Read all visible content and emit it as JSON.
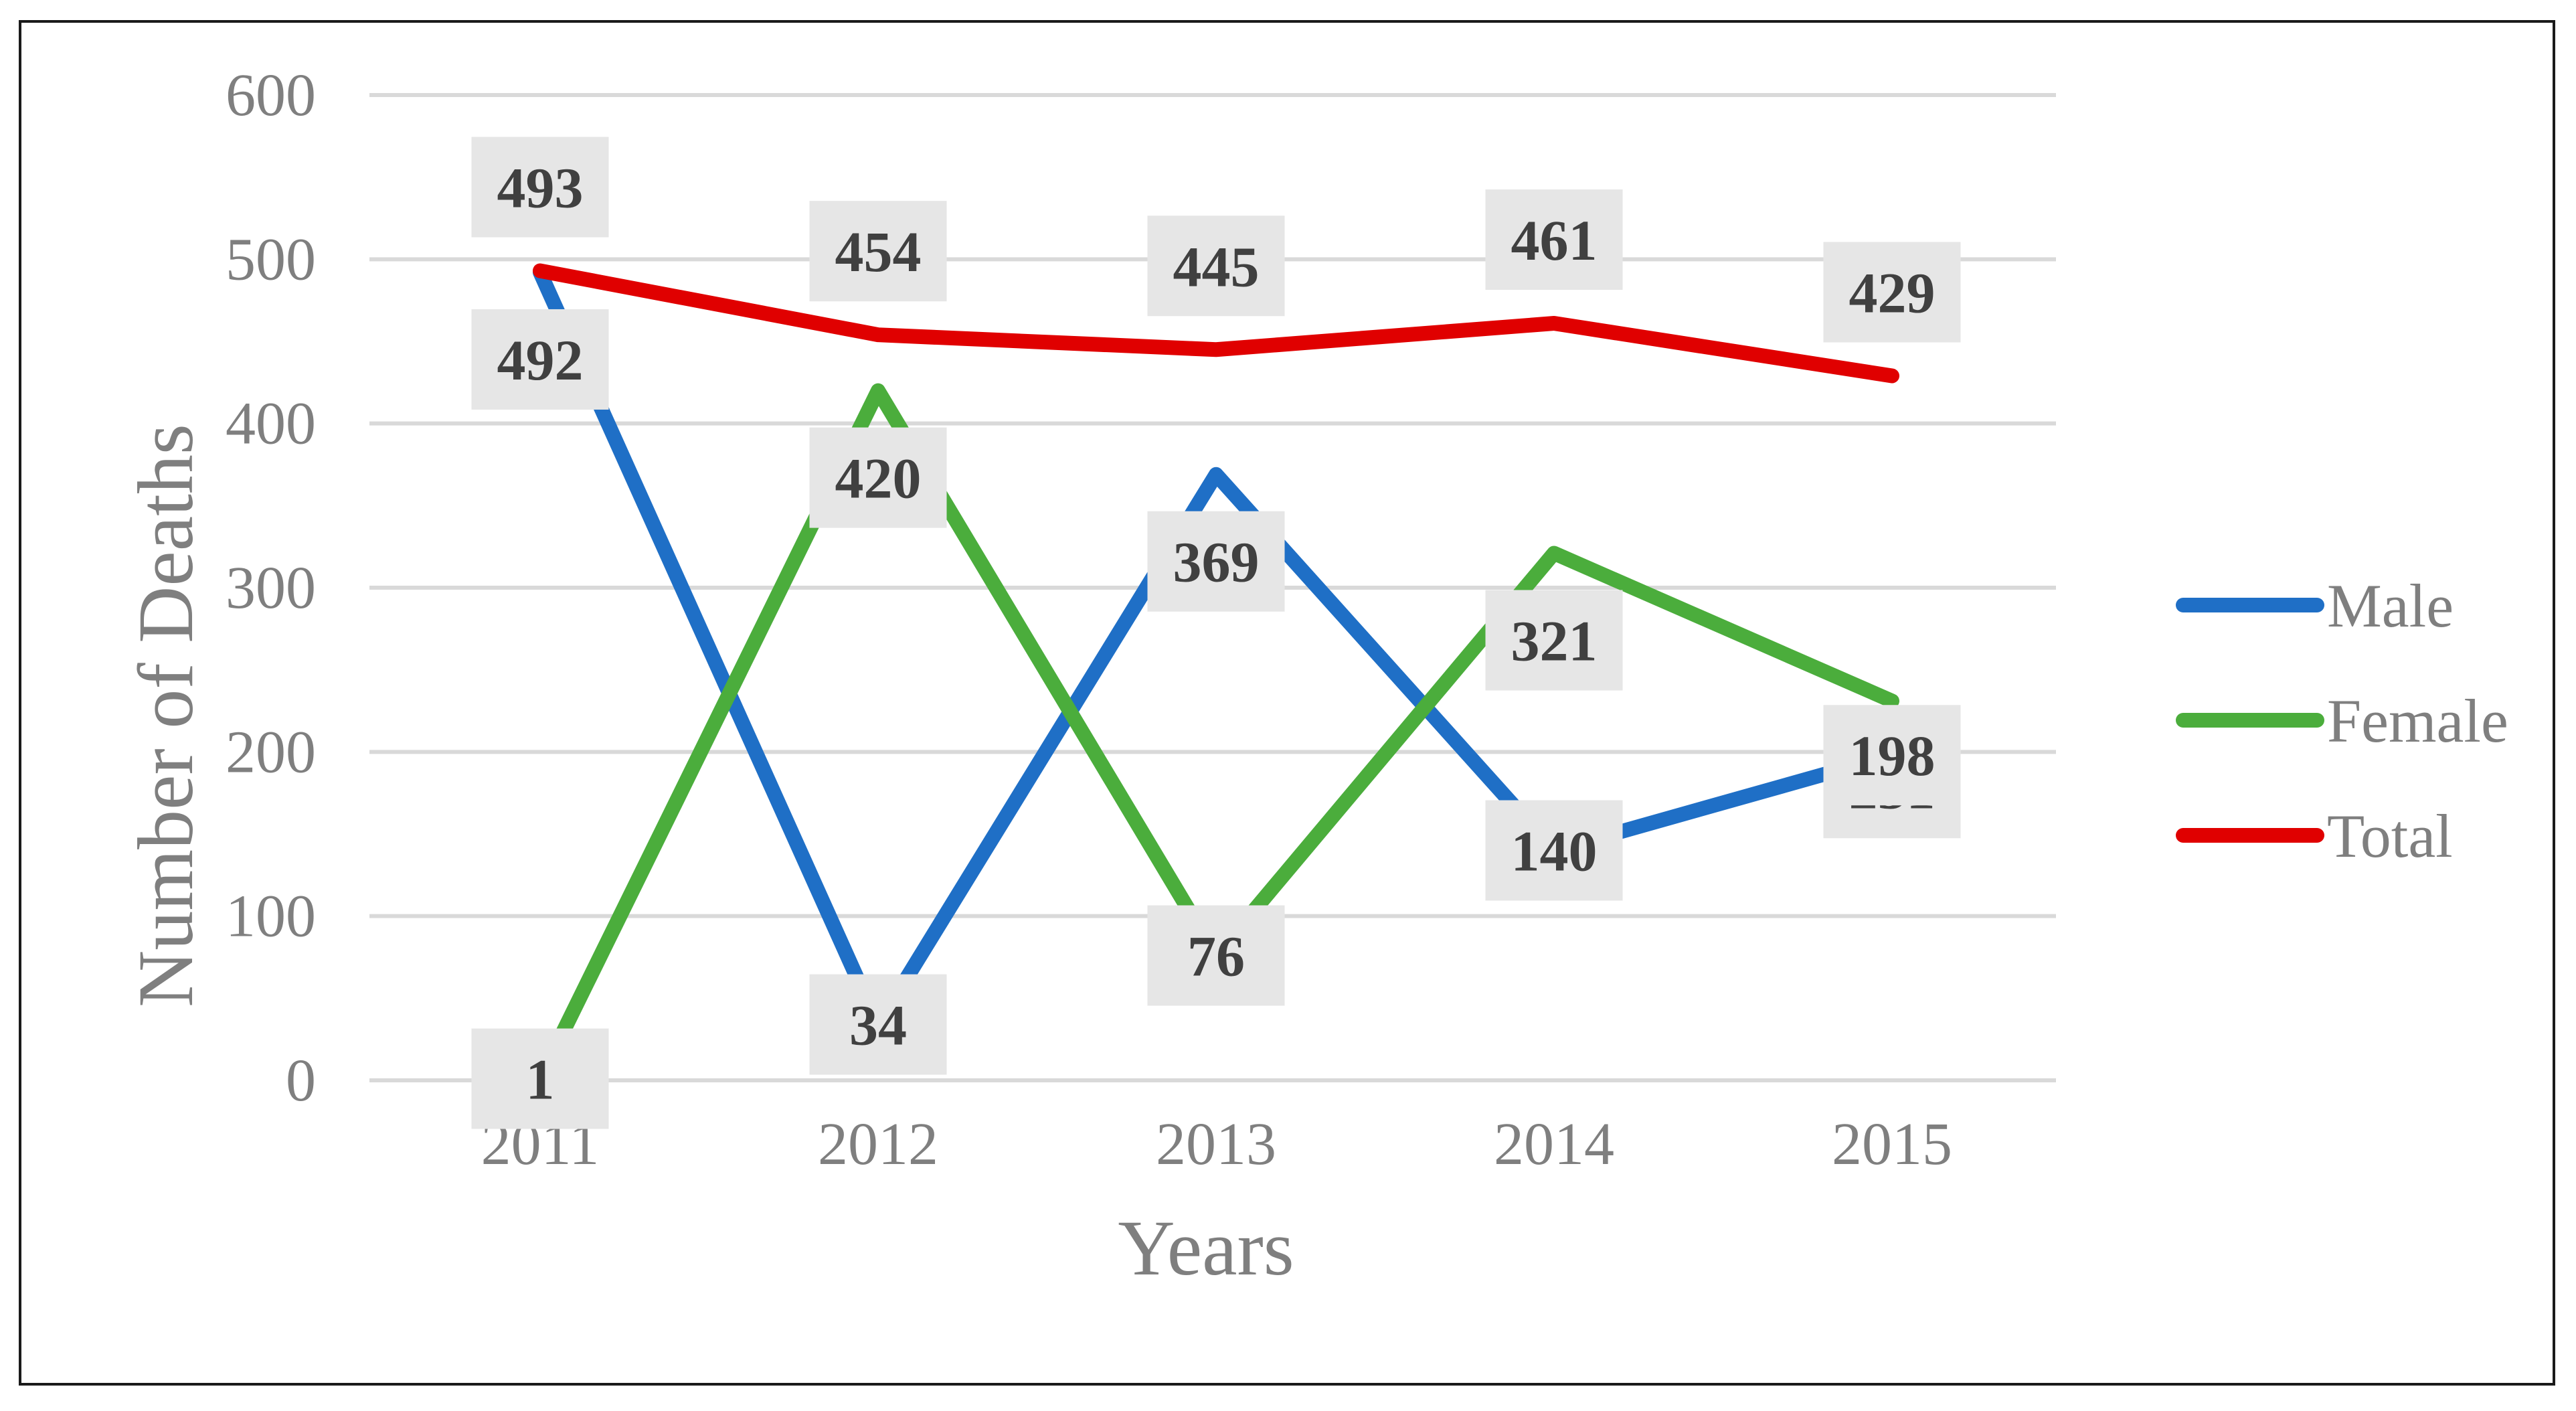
{
  "chart_data": {
    "type": "line",
    "title": "",
    "xlabel": "Years",
    "ylabel": "Number of Deaths",
    "categories": [
      "2011",
      "2012",
      "2013",
      "2014",
      "2015"
    ],
    "ylim": [
      0,
      600
    ],
    "yticks": [
      "0",
      "100",
      "200",
      "300",
      "400",
      "500",
      "600"
    ],
    "grid": true,
    "legend_position": "right",
    "series": [
      {
        "name": "Male",
        "color": "#1f6fc6",
        "values": [
          492,
          34,
          369,
          140,
          198
        ]
      },
      {
        "name": "Female",
        "color": "#4bad3c",
        "values": [
          1,
          420,
          76,
          321,
          231
        ]
      },
      {
        "name": "Total",
        "color": "#e00000",
        "values": [
          493,
          454,
          445,
          461,
          429
        ]
      }
    ]
  }
}
